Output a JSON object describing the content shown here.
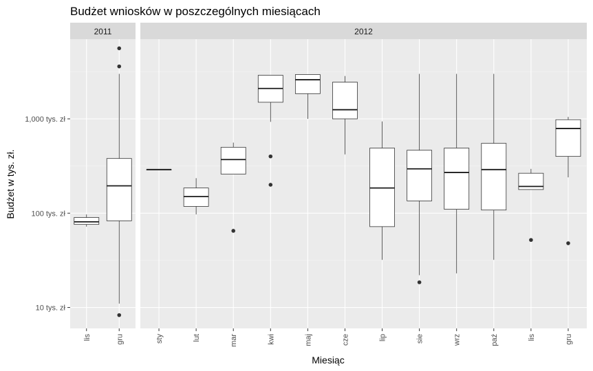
{
  "chart_data": {
    "type": "boxplot",
    "title": "Budżet wniosków w poszczególnych miesiącach",
    "xlabel": "Miesiąc",
    "ylabel": "Budżet w tys. zł.",
    "y_scale": "log10",
    "ylim": [
      6,
      7000
    ],
    "y_ticks": [
      {
        "value": 10,
        "label": "10 tys. zł"
      },
      {
        "value": 100,
        "label": "100 tys. zł"
      },
      {
        "value": 1000,
        "label": "1,000 tys. zł"
      }
    ],
    "grid": true,
    "panel_background": "#ebebeb",
    "strip_background": "#d9d9d9",
    "box_fill": "#ffffff",
    "box_stroke": "#333333",
    "facets": [
      {
        "label": "2011",
        "categories": [
          "lis",
          "gru"
        ],
        "boxes": [
          {
            "category": "lis",
            "lower_whisker": 72,
            "q1": 76,
            "median": 81,
            "q3": 90,
            "upper_whisker": 97,
            "outliers": []
          },
          {
            "category": "gru",
            "lower_whisker": 11,
            "q1": 83,
            "median": 195,
            "q3": 380,
            "upper_whisker": 3000,
            "outliers": [
              8.3,
              3600,
              5600
            ]
          }
        ]
      },
      {
        "label": "2012",
        "categories": [
          "sty",
          "lut",
          "mar",
          "kwi",
          "maj",
          "cze",
          "lip",
          "sie",
          "wrz",
          "paź",
          "lis",
          "gru"
        ],
        "boxes": [
          {
            "category": "sty",
            "lower_whisker": 290,
            "q1": 290,
            "median": 290,
            "q3": 290,
            "upper_whisker": 290,
            "outliers": []
          },
          {
            "category": "lut",
            "lower_whisker": 97,
            "q1": 118,
            "median": 150,
            "q3": 185,
            "upper_whisker": 235,
            "outliers": []
          },
          {
            "category": "mar",
            "lower_whisker": 260,
            "q1": 260,
            "median": 370,
            "q3": 500,
            "upper_whisker": 560,
            "outliers": [
              65
            ]
          },
          {
            "category": "kwi",
            "lower_whisker": 930,
            "q1": 1500,
            "median": 2100,
            "q3": 2900,
            "upper_whisker": 2900,
            "outliers": [
              400,
              200
            ]
          },
          {
            "category": "maj",
            "lower_whisker": 1000,
            "q1": 1850,
            "median": 2600,
            "q3": 2950,
            "upper_whisker": 2950,
            "outliers": []
          },
          {
            "category": "cze",
            "lower_whisker": 420,
            "q1": 1000,
            "median": 1250,
            "q3": 2450,
            "upper_whisker": 2850,
            "outliers": []
          },
          {
            "category": "lip",
            "lower_whisker": 32,
            "q1": 72,
            "median": 185,
            "q3": 490,
            "upper_whisker": 940,
            "outliers": []
          },
          {
            "category": "sie",
            "lower_whisker": 22,
            "q1": 135,
            "median": 295,
            "q3": 465,
            "upper_whisker": 3000,
            "outliers": [
              18.5
            ]
          },
          {
            "category": "wrz",
            "lower_whisker": 23,
            "q1": 110,
            "median": 270,
            "q3": 490,
            "upper_whisker": 3000,
            "outliers": []
          },
          {
            "category": "paź",
            "lower_whisker": 32,
            "q1": 108,
            "median": 290,
            "q3": 550,
            "upper_whisker": 3000,
            "outliers": []
          },
          {
            "category": "lis",
            "lower_whisker": 178,
            "q1": 178,
            "median": 192,
            "q3": 265,
            "upper_whisker": 295,
            "outliers": [
              52
            ]
          },
          {
            "category": "gru",
            "lower_whisker": 240,
            "q1": 400,
            "median": 790,
            "q3": 980,
            "upper_whisker": 1050,
            "outliers": [
              48
            ]
          }
        ]
      }
    ]
  }
}
